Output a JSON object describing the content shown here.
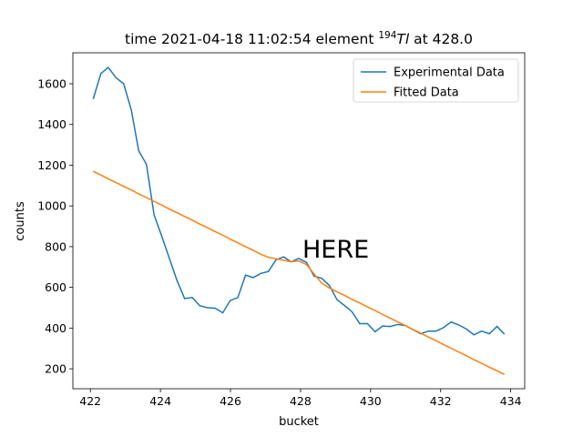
{
  "chart_data": {
    "type": "line",
    "title": {
      "before": "time 2021-04-18 11:02:54 element ",
      "sup": "194",
      "symbol": "Tl",
      "after": " at 428.0"
    },
    "x_label": "bucket",
    "y_label": "counts",
    "annotation": "HERE",
    "annotation_color": "#ff0000",
    "x": [
      422.08,
      422.3,
      422.51,
      422.73,
      422.95,
      423.17,
      423.38,
      423.6,
      423.82,
      424.04,
      424.25,
      424.47,
      424.69,
      424.91,
      425.12,
      425.34,
      425.56,
      425.78,
      425.99,
      426.21,
      426.43,
      426.65,
      426.86,
      427.08,
      427.3,
      427.52,
      427.73,
      427.95,
      428.17,
      428.39,
      428.6,
      428.82,
      429.04,
      429.26,
      429.47,
      429.69,
      429.91,
      430.13,
      430.34,
      430.56,
      430.78,
      431.0,
      431.21,
      431.43,
      431.65,
      431.87,
      432.08,
      432.3,
      432.52,
      432.74,
      432.95,
      433.17,
      433.39,
      433.61,
      433.82
    ],
    "series": [
      {
        "name": "Experimental Data",
        "color": "#1f77b4",
        "values": [
          1525,
          1650,
          1680,
          1630,
          1600,
          1470,
          1270,
          1205,
          955,
          850,
          745,
          635,
          545,
          550,
          510,
          500,
          498,
          475,
          535,
          550,
          660,
          648,
          668,
          678,
          735,
          750,
          725,
          742,
          722,
          655,
          645,
          610,
          540,
          510,
          480,
          422,
          422,
          382,
          410,
          408,
          418,
          412,
          392,
          372,
          385,
          385,
          402,
          430,
          415,
          395,
          367,
          385,
          372,
          408,
          370
        ]
      },
      {
        "name": "Fitted Data",
        "color": "#ff7f0e",
        "values": [
          1170,
          1152,
          1133,
          1115,
          1096,
          1078,
          1059,
          1041,
          1022,
          1004,
          985,
          967,
          948,
          930,
          911,
          893,
          874,
          856,
          837,
          819,
          800,
          782,
          763,
          748,
          740,
          733,
          726,
          730,
          712,
          665,
          622,
          597,
          578,
          560,
          541,
          523,
          504,
          486,
          467,
          449,
          430,
          412,
          393,
          375,
          356,
          338,
          319,
          301,
          282,
          264,
          245,
          227,
          208,
          190,
          172
        ]
      }
    ],
    "xlim": [
      421.5,
      434.4
    ],
    "ylim": [
      102,
      1752
    ],
    "xticks": [
      422,
      424,
      426,
      428,
      430,
      432,
      434
    ],
    "yticks": [
      200,
      400,
      600,
      800,
      1000,
      1200,
      1400,
      1600
    ],
    "legend": "upper right"
  }
}
